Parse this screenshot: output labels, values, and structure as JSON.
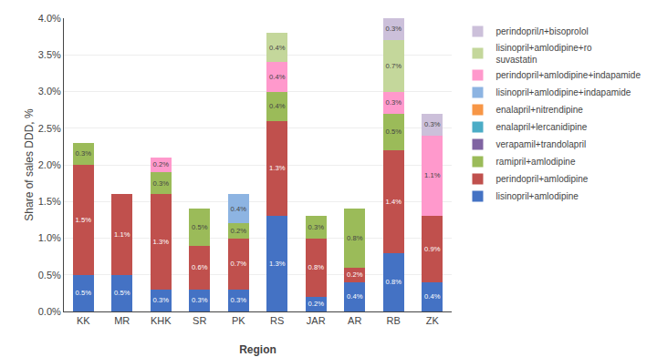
{
  "chart_data": {
    "type": "bar",
    "stacked": true,
    "data_labels": true,
    "grid": true,
    "legend": "right",
    "xlabel": "Region",
    "ylabel": "Share of sales DDD, %",
    "categories": [
      "KK",
      "MR",
      "KHK",
      "SR",
      "PK",
      "RS",
      "JAR",
      "AR",
      "RB",
      "ZK"
    ],
    "ylim": [
      0,
      4.0
    ],
    "yticks": [
      {
        "value": 0.0,
        "label": "0.0%"
      },
      {
        "value": 0.5,
        "label": "0.5%"
      },
      {
        "value": 1.0,
        "label": "1.0%"
      },
      {
        "value": 1.5,
        "label": "1.5%"
      },
      {
        "value": 2.0,
        "label": "2.0%"
      },
      {
        "value": 2.5,
        "label": "2.5%"
      },
      {
        "value": 3.0,
        "label": "3.0%"
      },
      {
        "value": 3.5,
        "label": "3.5%"
      },
      {
        "value": 4.0,
        "label": "4.0%"
      }
    ],
    "series": [
      {
        "name": "lisinopril+amlodipine",
        "color": "#4472C4",
        "values": [
          0.5,
          0.5,
          0.3,
          0.3,
          0.3,
          1.3,
          0.2,
          0.4,
          0.8,
          0.4
        ],
        "value_labels": [
          "0.5%",
          "0.5%",
          "0.3%",
          "0.3%",
          "0.3%",
          "1.3%",
          "0.2%",
          "0.4%",
          "0.8%",
          "0.4%"
        ]
      },
      {
        "name": "perindopril+amlodipine",
        "color": "#C0504D",
        "values": [
          1.5,
          1.1,
          1.3,
          0.6,
          0.7,
          1.3,
          0.8,
          0.2,
          1.4,
          0.9
        ],
        "value_labels": [
          "1.5%",
          "1.1%",
          "1.3%",
          "0.6%",
          "0.7%",
          "1.3%",
          "0.8%",
          "0.2%",
          "1.4%",
          "0.9%"
        ]
      },
      {
        "name": "ramipril+amlodipine",
        "color": "#9BBB59",
        "values": [
          0.3,
          0.0,
          0.3,
          0.5,
          0.2,
          0.4,
          0.3,
          0.8,
          0.5,
          0.0
        ],
        "value_labels": [
          "0.3%",
          null,
          "0.3%",
          "0.5%",
          "0.2%",
          "0.4%",
          "0.3%",
          "0.8%",
          "0.5%",
          null
        ]
      },
      {
        "name": "verapamil+trandolapril",
        "color": "#8064A2",
        "values": [
          0.0,
          0.0,
          0.0,
          0.0,
          0.0,
          0.0,
          0.0,
          0.0,
          0.0,
          0.0
        ],
        "value_labels": [
          null,
          null,
          null,
          null,
          null,
          null,
          null,
          null,
          null,
          null
        ]
      },
      {
        "name": "enalapril+lercanidipine",
        "color": "#4BACC6",
        "values": [
          0.0,
          0.0,
          0.0,
          0.0,
          0.0,
          0.0,
          0.0,
          0.0,
          0.0,
          0.0
        ],
        "value_labels": [
          null,
          null,
          null,
          null,
          null,
          null,
          null,
          null,
          null,
          null
        ]
      },
      {
        "name": "enalapril+nitrendipine",
        "color": "#F79646",
        "values": [
          0.0,
          0.0,
          0.0,
          0.0,
          0.0,
          0.0,
          0.0,
          0.0,
          0.0,
          0.0
        ],
        "value_labels": [
          null,
          null,
          null,
          null,
          null,
          null,
          null,
          null,
          null,
          null
        ]
      },
      {
        "name": "lisinopril+amlodipine+indapamide",
        "color": "#8DB4E2",
        "values": [
          0.0,
          0.0,
          0.0,
          0.0,
          0.4,
          0.0,
          0.0,
          0.0,
          0.0,
          0.0
        ],
        "value_labels": [
          null,
          null,
          null,
          null,
          "0.4%",
          null,
          null,
          null,
          null,
          null
        ]
      },
      {
        "name": "perindopril+amlodipine+indapamide",
        "color": "#FF99CC",
        "values": [
          0.0,
          0.0,
          0.2,
          0.0,
          0.0,
          0.4,
          0.0,
          0.0,
          0.3,
          1.1
        ],
        "value_labels": [
          null,
          null,
          "0.2%",
          null,
          null,
          "0.4%",
          null,
          null,
          "0.3%",
          "1.1%"
        ]
      },
      {
        "name": "lisinopril+amlodipine+ro\nsuvastatin",
        "color": "#C4D79B",
        "values": [
          0.0,
          0.0,
          0.0,
          0.0,
          0.0,
          0.4,
          0.0,
          0.0,
          0.7,
          0.0
        ],
        "value_labels": [
          null,
          null,
          null,
          null,
          null,
          "0.4%",
          null,
          null,
          "0.7%",
          null
        ]
      },
      {
        "name": "perindoprilл+bisoprolol",
        "color": "#CCC0DA",
        "values": [
          0.0,
          0.0,
          0.0,
          0.0,
          0.0,
          0.0,
          0.0,
          0.0,
          0.3,
          0.3
        ],
        "value_labels": [
          null,
          null,
          null,
          null,
          null,
          null,
          null,
          null,
          "0.3%",
          "0.3%"
        ]
      }
    ]
  }
}
